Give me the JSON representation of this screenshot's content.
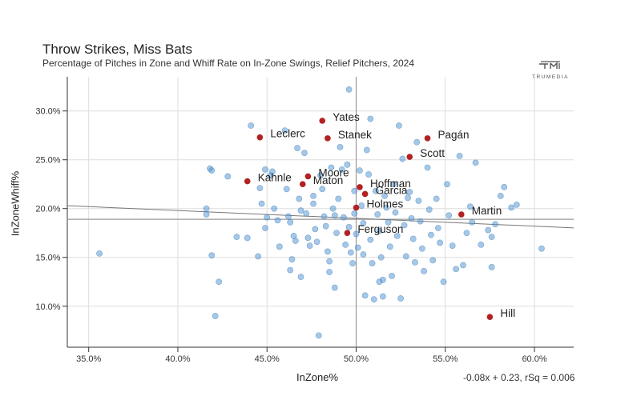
{
  "header": {
    "title": "Throw Strikes, Miss Bats",
    "subtitle": "Percentage of Pitches in Zone and Whiff Rate on In-Zone Swings, Relief Pitchers, 2024",
    "brand": "TRUMEDIA"
  },
  "colors": {
    "point": "#5b9bd5",
    "highlight": "#b22222",
    "grid": "#dddddd",
    "refline": "#999999",
    "axis": "#333333"
  },
  "chart_data": {
    "type": "scatter",
    "title": "Throw Strikes, Miss Bats",
    "xlabel": "InZone%",
    "ylabel": "InZoneWhiff%",
    "xlim": [
      33.8,
      62.2
    ],
    "ylim": [
      5.8,
      33.5
    ],
    "x_ticks": [
      35,
      40,
      45,
      50,
      55,
      60
    ],
    "x_tick_labels": [
      "35.0%",
      "40.0%",
      "45.0%",
      "50.0%",
      "55.0%",
      "60.0%"
    ],
    "y_ticks": [
      10,
      15,
      20,
      25,
      30
    ],
    "y_tick_labels": [
      "10.0%",
      "15.0%",
      "20.0%",
      "25.0%",
      "30.0%"
    ],
    "reference_lines": {
      "x": 50.0,
      "y": 18.9
    },
    "regression": {
      "label": "-0.08x + 0.23, rSq = 0.006",
      "slope": -0.08,
      "intercept": 23.0
    },
    "highlighted": [
      {
        "name": "Yates",
        "x": 48.1,
        "y": 29.0
      },
      {
        "name": "Leclerc",
        "x": 44.6,
        "y": 27.3
      },
      {
        "name": "Stanek",
        "x": 48.4,
        "y": 27.2
      },
      {
        "name": "Pagán",
        "x": 54.0,
        "y": 27.2
      },
      {
        "name": "Scott",
        "x": 53.0,
        "y": 25.3
      },
      {
        "name": "Kahnle",
        "x": 43.9,
        "y": 22.8
      },
      {
        "name": "Moore",
        "x": 47.3,
        "y": 23.3
      },
      {
        "name": "Maton",
        "x": 47.0,
        "y": 22.5
      },
      {
        "name": "Hoffman",
        "x": 50.2,
        "y": 22.2
      },
      {
        "name": "Garcia",
        "x": 50.5,
        "y": 21.5
      },
      {
        "name": "Holmes",
        "x": 50.0,
        "y": 20.1
      },
      {
        "name": "Martin",
        "x": 55.9,
        "y": 19.4
      },
      {
        "name": "Ferguson",
        "x": 49.5,
        "y": 17.5
      },
      {
        "name": "Hill",
        "x": 57.5,
        "y": 8.9
      }
    ],
    "points": [
      [
        35.6,
        15.4
      ],
      [
        41.6,
        19.4
      ],
      [
        41.6,
        20.0
      ],
      [
        41.8,
        24.1
      ],
      [
        41.9,
        23.9
      ],
      [
        41.9,
        15.2
      ],
      [
        42.1,
        9.0
      ],
      [
        42.3,
        12.5
      ],
      [
        42.8,
        23.3
      ],
      [
        43.3,
        17.1
      ],
      [
        43.9,
        17.0
      ],
      [
        44.1,
        28.5
      ],
      [
        44.6,
        22.1
      ],
      [
        44.7,
        20.5
      ],
      [
        44.9,
        24.0
      ],
      [
        44.9,
        18.0
      ],
      [
        45.0,
        19.1
      ],
      [
        45.2,
        23.4
      ],
      [
        45.3,
        23.8
      ],
      [
        45.4,
        20.0
      ],
      [
        45.6,
        18.8
      ],
      [
        45.7,
        16.1
      ],
      [
        46.0,
        28.0
      ],
      [
        46.1,
        22.0
      ],
      [
        46.2,
        19.2
      ],
      [
        46.3,
        18.6
      ],
      [
        46.4,
        14.8
      ],
      [
        46.5,
        17.2
      ],
      [
        46.6,
        16.7
      ],
      [
        46.7,
        26.2
      ],
      [
        46.8,
        21.0
      ],
      [
        46.9,
        19.8
      ],
      [
        46.9,
        13.0
      ],
      [
        47.1,
        25.7
      ],
      [
        47.2,
        19.5
      ],
      [
        47.3,
        17.0
      ],
      [
        47.4,
        16.2
      ],
      [
        47.6,
        20.5
      ],
      [
        47.7,
        17.9
      ],
      [
        47.8,
        16.6
      ],
      [
        47.9,
        7.0
      ],
      [
        48.0,
        23.4
      ],
      [
        48.1,
        22.0
      ],
      [
        48.2,
        19.2
      ],
      [
        48.3,
        18.2
      ],
      [
        48.4,
        15.6
      ],
      [
        48.5,
        14.6
      ],
      [
        48.5,
        13.5
      ],
      [
        48.6,
        24.2
      ],
      [
        48.7,
        20.0
      ],
      [
        48.8,
        19.3
      ],
      [
        48.9,
        17.5
      ],
      [
        49.0,
        21.0
      ],
      [
        49.1,
        26.3
      ],
      [
        49.2,
        24.0
      ],
      [
        49.3,
        19.1
      ],
      [
        49.4,
        16.3
      ],
      [
        49.5,
        24.5
      ],
      [
        49.6,
        18.1
      ],
      [
        49.7,
        15.5
      ],
      [
        49.8,
        14.4
      ],
      [
        49.9,
        21.8
      ],
      [
        49.9,
        19.5
      ],
      [
        50.0,
        17.4
      ],
      [
        50.1,
        16.0
      ],
      [
        50.2,
        23.9
      ],
      [
        50.3,
        20.3
      ],
      [
        50.4,
        18.5
      ],
      [
        50.4,
        15.3
      ],
      [
        50.5,
        11.1
      ],
      [
        50.6,
        26.0
      ],
      [
        50.7,
        23.5
      ],
      [
        50.8,
        29.2
      ],
      [
        50.8,
        16.8
      ],
      [
        50.9,
        14.4
      ],
      [
        51.0,
        10.7
      ],
      [
        51.1,
        21.8
      ],
      [
        51.2,
        19.4
      ],
      [
        51.3,
        17.7
      ],
      [
        51.4,
        15.0
      ],
      [
        51.5,
        11.0
      ],
      [
        51.5,
        12.7
      ],
      [
        51.6,
        21.3
      ],
      [
        51.7,
        20.1
      ],
      [
        51.8,
        18.6
      ],
      [
        51.9,
        16.1
      ],
      [
        52.0,
        13.1
      ],
      [
        52.1,
        22.5
      ],
      [
        52.2,
        19.6
      ],
      [
        52.3,
        17.2
      ],
      [
        52.4,
        28.5
      ],
      [
        52.5,
        10.8
      ],
      [
        52.6,
        25.1
      ],
      [
        52.7,
        18.3
      ],
      [
        52.8,
        15.1
      ],
      [
        53.0,
        21.7
      ],
      [
        53.1,
        19.0
      ],
      [
        53.2,
        16.9
      ],
      [
        53.3,
        14.5
      ],
      [
        53.4,
        26.8
      ],
      [
        53.5,
        20.8
      ],
      [
        53.6,
        18.7
      ],
      [
        53.7,
        15.9
      ],
      [
        53.8,
        13.6
      ],
      [
        54.0,
        24.2
      ],
      [
        54.1,
        19.9
      ],
      [
        54.2,
        17.3
      ],
      [
        54.3,
        14.7
      ],
      [
        54.5,
        21.0
      ],
      [
        54.6,
        18.0
      ],
      [
        54.7,
        16.5
      ],
      [
        54.9,
        12.5
      ],
      [
        55.1,
        22.5
      ],
      [
        55.2,
        19.3
      ],
      [
        55.4,
        16.2
      ],
      [
        55.6,
        13.8
      ],
      [
        55.8,
        25.4
      ],
      [
        56.0,
        14.2
      ],
      [
        56.2,
        17.5
      ],
      [
        56.4,
        20.2
      ],
      [
        56.5,
        18.6
      ],
      [
        56.7,
        24.7
      ],
      [
        57.0,
        16.3
      ],
      [
        57.4,
        17.8
      ],
      [
        57.6,
        14.0
      ],
      [
        57.6,
        17.1
      ],
      [
        57.8,
        18.4
      ],
      [
        58.3,
        22.2
      ],
      [
        58.7,
        20.1
      ],
      [
        59.0,
        20.4
      ],
      [
        60.4,
        15.9
      ],
      [
        58.1,
        21.3
      ],
      [
        46.3,
        13.7
      ],
      [
        48.8,
        11.9
      ],
      [
        51.3,
        12.5
      ],
      [
        44.5,
        15.1
      ],
      [
        49.6,
        32.2
      ],
      [
        47.6,
        21.3
      ],
      [
        52.9,
        21.1
      ]
    ]
  }
}
